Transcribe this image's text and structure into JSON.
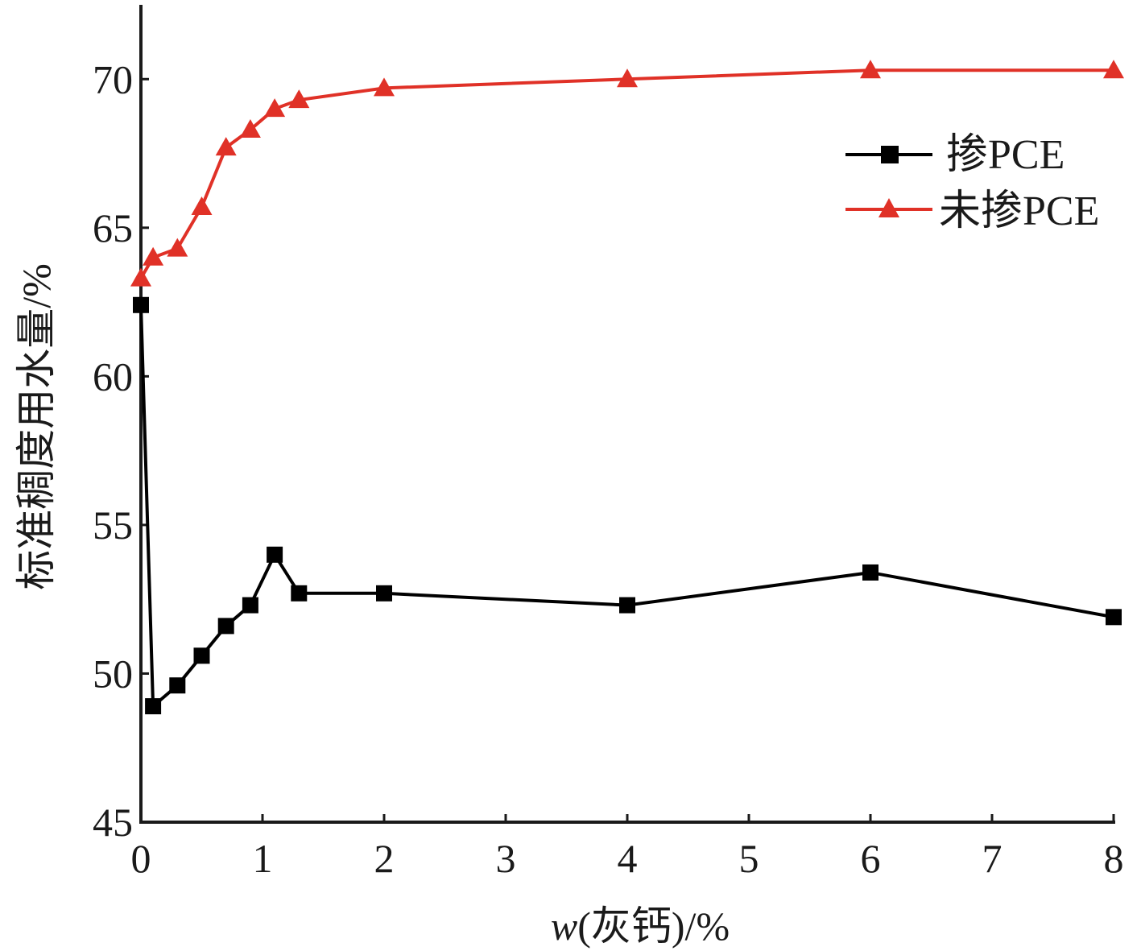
{
  "chart_data": {
    "type": "line",
    "xlabel_italic": "w",
    "xlabel_rest": "(灰钙)/%",
    "ylabel": "标准稠度用水量/%",
    "xlim": [
      0,
      8
    ],
    "ylim": [
      45,
      72.5
    ],
    "xticks": [
      0,
      1,
      2,
      3,
      4,
      5,
      6,
      7,
      8
    ],
    "yticks": [
      45,
      50,
      55,
      60,
      65,
      70
    ],
    "x_tick_labels": [
      "0",
      "1",
      "2",
      "3",
      "4",
      "5",
      "6",
      "7",
      "8"
    ],
    "y_tick_labels": [
      "45",
      "50",
      "55",
      "60",
      "65",
      "70"
    ],
    "legend_position": "top-right",
    "grid": false,
    "series": [
      {
        "name": "掺PCE",
        "color": "#000000",
        "marker": "square",
        "x": [
          0,
          0.1,
          0.3,
          0.5,
          0.7,
          0.9,
          1.1,
          1.3,
          2,
          4,
          6,
          8
        ],
        "y": [
          62.4,
          48.9,
          49.6,
          50.6,
          51.6,
          52.3,
          54.0,
          52.7,
          52.7,
          52.3,
          53.4,
          51.9
        ]
      },
      {
        "name": "未掺PCE",
        "color": "#e03127",
        "marker": "triangle",
        "x": [
          0,
          0.1,
          0.3,
          0.5,
          0.7,
          0.9,
          1.1,
          1.3,
          2,
          4,
          6,
          8
        ],
        "y": [
          63.3,
          64.0,
          64.3,
          65.7,
          67.7,
          68.3,
          69.0,
          69.3,
          69.7,
          70.0,
          70.3,
          70.3
        ]
      }
    ]
  }
}
